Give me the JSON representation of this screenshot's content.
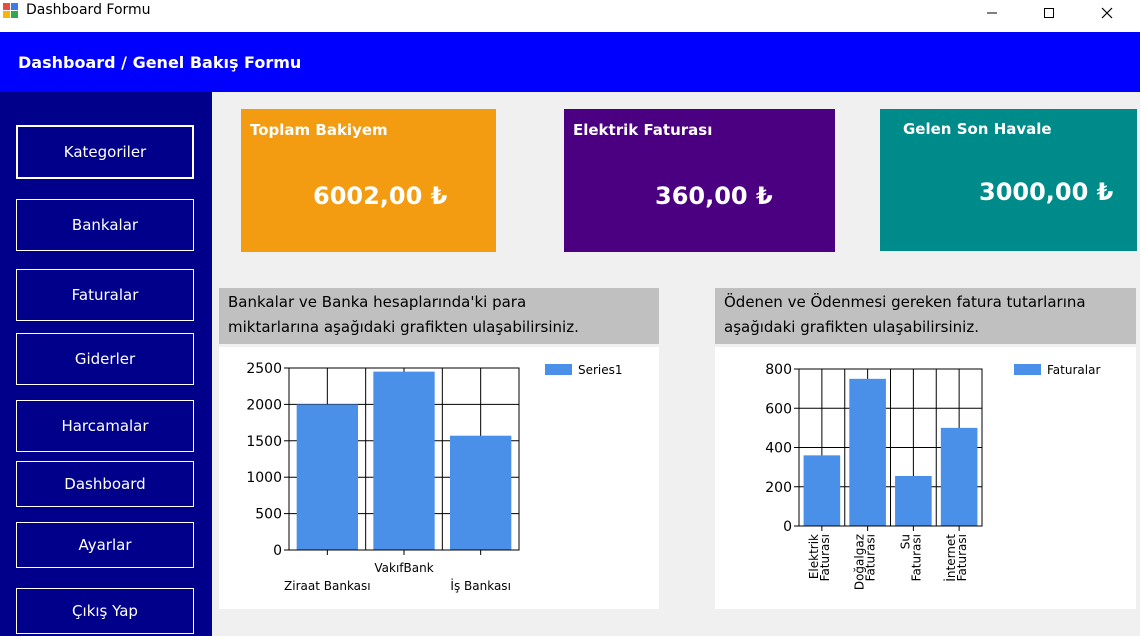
{
  "window": {
    "title": "Dashboard Formu",
    "minimize_glyph": "minimize-icon",
    "maximize_glyph": "maximize-icon",
    "close_glyph": "close-icon"
  },
  "header": {
    "title": "Dashboard / Genel Bakış Formu",
    "background": "#0000ff"
  },
  "sidebar": {
    "background": "#00008b",
    "items": [
      {
        "label": "Kategoriler",
        "active": true
      },
      {
        "label": "Bankalar"
      },
      {
        "label": "Faturalar"
      },
      {
        "label": "Giderler"
      },
      {
        "label": "Harcamalar"
      },
      {
        "label": "Dashboard"
      },
      {
        "label": "Ayarlar"
      },
      {
        "label": "Çıkış Yap"
      }
    ]
  },
  "cards": [
    {
      "title": "Toplam Bakiyem",
      "value": "6002,00 ₺",
      "color": "#f39c12"
    },
    {
      "title": "Elektrik Faturası",
      "value": "360,00 ₺",
      "color": "#4b0082"
    },
    {
      "title": "Gelen Son Havale",
      "value": "3000,00 ₺",
      "color": "#008b8b"
    }
  ],
  "bank_panel": {
    "caption_line1": "Bankalar ve Banka hesaplarında'ki para",
    "caption_line2": "miktarlarına aşağıdaki grafikten ulaşabilirsiniz."
  },
  "bill_panel": {
    "caption_line1": "Ödenen ve Ödenmesi gereken fatura tutarlarına",
    "caption_line2": "aşağıdaki grafikten ulaşabilirsiniz."
  },
  "chart_data": [
    {
      "type": "bar",
      "categories": [
        "Ziraat Bankası",
        "VakıfBank",
        "İş Bankası"
      ],
      "series": [
        {
          "name": "Series1",
          "values": [
            2000,
            2450,
            1570
          ],
          "color": "#4a90e8"
        }
      ],
      "ylim": [
        0,
        2500
      ],
      "yticks": [
        0,
        500,
        1000,
        1500,
        2000,
        2500
      ],
      "grid": true,
      "legend": "top-right",
      "title": "",
      "xlabel": "",
      "ylabel": ""
    },
    {
      "type": "bar",
      "categories": [
        [
          "Elektrik",
          "Faturası"
        ],
        [
          "Doğalgaz",
          "Faturası"
        ],
        [
          "Su",
          "Faturası"
        ],
        [
          "İnternet",
          "Faturası"
        ]
      ],
      "series": [
        {
          "name": "Faturalar",
          "values": [
            360,
            750,
            255,
            500
          ],
          "color": "#4a90e8"
        }
      ],
      "ylim": [
        0,
        800
      ],
      "yticks": [
        0,
        200,
        400,
        600,
        800
      ],
      "grid": true,
      "legend": "top-right",
      "title": "",
      "xlabel": "",
      "ylabel": ""
    }
  ]
}
